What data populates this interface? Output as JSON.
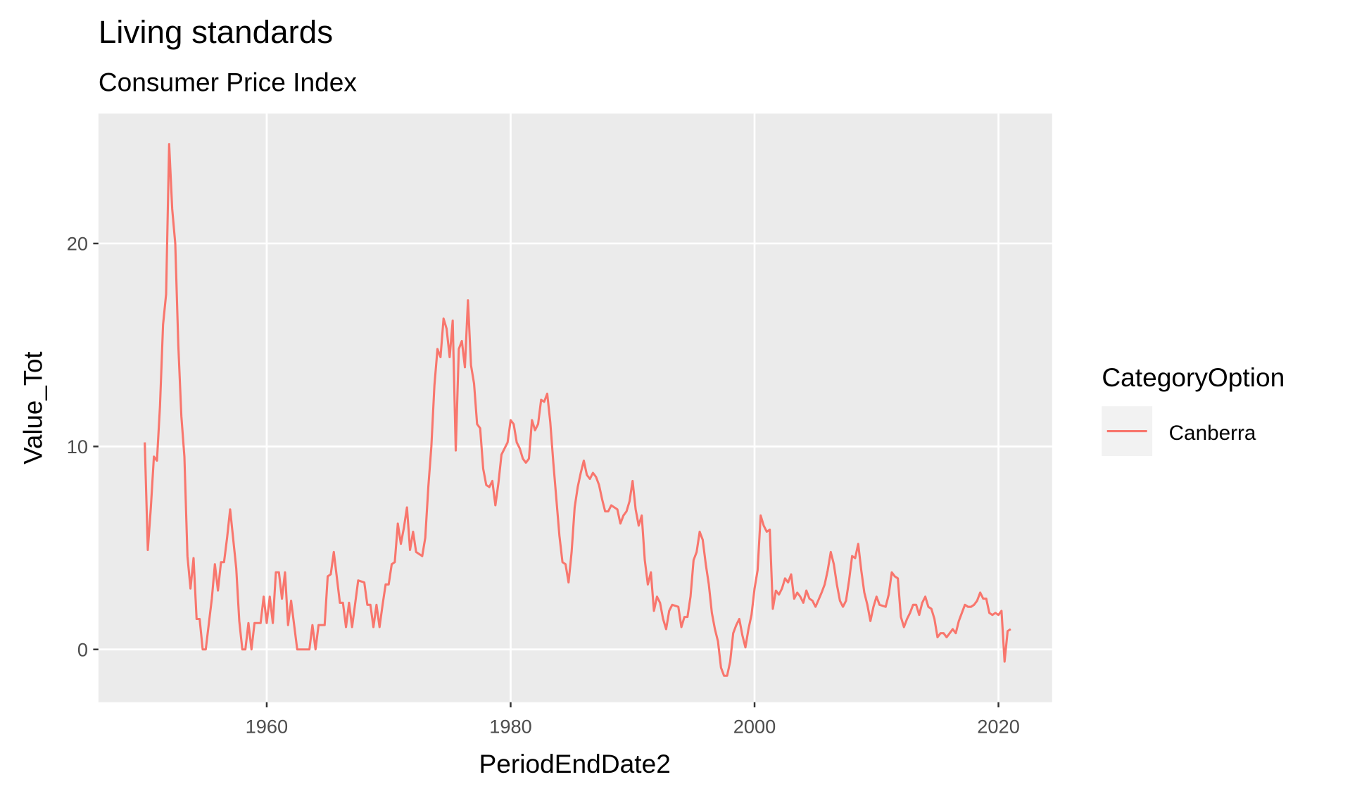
{
  "chart_data": {
    "type": "line",
    "title": "Living standards",
    "subtitle": "Consumer Price Index",
    "x_label": "PeriodEndDate2",
    "y_label": "Value_Tot",
    "legend_title": "CategoryOption",
    "grid": true,
    "legend_position": "right",
    "xlim": [
      1946.2,
      2024.4
    ],
    "ylim": [
      -2.6,
      26.4
    ],
    "xticks": [
      1960,
      1980,
      2000,
      2020
    ],
    "yticks": [
      0,
      10,
      20
    ],
    "x": [
      1950.0,
      1950.25,
      1950.5,
      1950.75,
      1951.0,
      1951.25,
      1951.5,
      1951.75,
      1952.0,
      1952.25,
      1952.5,
      1952.75,
      1953.0,
      1953.25,
      1953.5,
      1953.75,
      1954.0,
      1954.25,
      1954.5,
      1954.75,
      1955.0,
      1955.5,
      1955.75,
      1956.0,
      1956.25,
      1956.5,
      1956.75,
      1957.0,
      1957.5,
      1957.75,
      1958.0,
      1958.25,
      1958.5,
      1958.75,
      1959.0,
      1959.5,
      1959.75,
      1960.0,
      1960.25,
      1960.5,
      1960.75,
      1961.0,
      1961.25,
      1961.5,
      1961.75,
      1962.0,
      1962.5,
      1963.5,
      1963.75,
      1964.0,
      1964.25,
      1964.75,
      1965.0,
      1965.25,
      1965.5,
      1966.0,
      1966.25,
      1966.5,
      1966.75,
      1967.0,
      1967.5,
      1968.0,
      1968.25,
      1968.5,
      1968.75,
      1969.0,
      1969.25,
      1969.5,
      1969.75,
      1970.0,
      1970.25,
      1970.5,
      1970.75,
      1971.0,
      1971.25,
      1971.5,
      1971.75,
      1972.0,
      1972.25,
      1972.75,
      1973.0,
      1973.25,
      1973.5,
      1973.75,
      1974.0,
      1974.25,
      1974.5,
      1974.75,
      1975.0,
      1975.25,
      1975.5,
      1975.75,
      1976.0,
      1976.25,
      1976.5,
      1976.75,
      1977.0,
      1977.25,
      1977.5,
      1977.75,
      1978.0,
      1978.25,
      1978.5,
      1978.75,
      1979.0,
      1979.25,
      1979.75,
      1980.0,
      1980.25,
      1980.5,
      1980.75,
      1981.0,
      1981.25,
      1981.5,
      1981.75,
      1982.0,
      1982.25,
      1982.5,
      1982.75,
      1983.0,
      1983.25,
      1983.5,
      1983.75,
      1984.0,
      1984.25,
      1984.5,
      1984.75,
      1985.0,
      1985.25,
      1985.5,
      1985.75,
      1986.0,
      1986.25,
      1986.5,
      1986.75,
      1987.0,
      1987.25,
      1987.5,
      1987.75,
      1988.0,
      1988.25,
      1988.75,
      1989.0,
      1989.25,
      1989.5,
      1989.75,
      1990.0,
      1990.25,
      1990.5,
      1990.75,
      1991.0,
      1991.25,
      1991.5,
      1991.75,
      1992.0,
      1992.25,
      1992.5,
      1992.75,
      1993.0,
      1993.25,
      1993.75,
      1994.0,
      1994.25,
      1994.5,
      1994.75,
      1995.0,
      1995.25,
      1995.5,
      1995.75,
      1996.0,
      1996.25,
      1996.5,
      1996.75,
      1997.0,
      1997.25,
      1997.5,
      1997.75,
      1998.0,
      1998.25,
      1998.5,
      1998.75,
      1999.0,
      1999.25,
      1999.5,
      1999.75,
      2000.0,
      2000.25,
      2000.5,
      2000.75,
      2001.0,
      2001.25,
      2001.5,
      2001.75,
      2002.0,
      2002.25,
      2002.5,
      2002.75,
      2003.0,
      2003.25,
      2003.5,
      2003.75,
      2004.0,
      2004.25,
      2004.5,
      2004.75,
      2005.0,
      2005.5,
      2005.75,
      2006.0,
      2006.25,
      2006.5,
      2006.75,
      2007.0,
      2007.25,
      2007.5,
      2007.75,
      2008.0,
      2008.25,
      2008.5,
      2008.75,
      2009.0,
      2009.25,
      2009.5,
      2009.75,
      2010.0,
      2010.25,
      2010.75,
      2011.0,
      2011.25,
      2011.5,
      2011.75,
      2012.0,
      2012.25,
      2012.5,
      2012.75,
      2013.0,
      2013.25,
      2013.5,
      2013.75,
      2014.0,
      2014.25,
      2014.5,
      2014.75,
      2015.0,
      2015.25,
      2015.5,
      2015.75,
      2016.0,
      2016.25,
      2016.5,
      2016.75,
      2017.0,
      2017.25,
      2017.5,
      2017.75,
      2018.0,
      2018.25,
      2018.5,
      2018.75,
      2019.0,
      2019.25,
      2019.5,
      2019.75,
      2020.0,
      2020.25,
      2020.5,
      2020.75,
      2021.0
    ],
    "series": [
      {
        "name": "Canberra",
        "color": "#f8766d",
        "values": [
          10.2,
          4.9,
          7,
          9.5,
          9.3,
          12,
          16,
          17.5,
          24.9,
          21.7,
          20,
          15,
          11.5,
          9.5,
          4.6,
          3,
          4.5,
          1.5,
          1.5,
          0,
          0,
          2.5,
          4.2,
          2.9,
          4.3,
          4.3,
          5.5,
          6.9,
          4,
          1.4,
          0,
          0,
          1.3,
          0,
          1.3,
          1.3,
          2.6,
          1.3,
          2.6,
          1.3,
          3.8,
          3.8,
          2.5,
          3.8,
          1.2,
          2.4,
          0,
          0,
          1.2,
          0,
          1.2,
          1.2,
          3.6,
          3.7,
          4.8,
          2.3,
          2.3,
          1.1,
          2.3,
          1.1,
          3.4,
          3.3,
          2.2,
          2.2,
          1.1,
          2.2,
          1.1,
          2.2,
          3.2,
          3.2,
          4.2,
          4.3,
          6.2,
          5.2,
          6,
          7,
          4.9,
          5.8,
          4.8,
          4.6,
          5.5,
          8,
          10,
          13,
          14.8,
          14.4,
          16.3,
          15.8,
          14.4,
          16.2,
          9.8,
          14.8,
          15.2,
          13.9,
          17.2,
          14,
          13.1,
          11.1,
          10.9,
          8.9,
          8.1,
          8,
          8.3,
          7.1,
          8.2,
          9.6,
          10.2,
          11.3,
          11.1,
          10.2,
          9.9,
          9.4,
          9.2,
          9.4,
          11.3,
          10.8,
          11.1,
          12.3,
          12.2,
          12.6,
          11.2,
          9.2,
          7.4,
          5.6,
          4.3,
          4.2,
          3.3,
          4.8,
          7,
          8,
          8.7,
          9.3,
          8.6,
          8.4,
          8.7,
          8.5,
          8.1,
          7.4,
          6.8,
          6.8,
          7.1,
          6.9,
          6.2,
          6.6,
          6.8,
          7.3,
          8.3,
          6.9,
          6.1,
          6.6,
          4.4,
          3.2,
          3.8,
          1.9,
          2.6,
          2.3,
          1.5,
          1.0,
          1.9,
          2.2,
          2.1,
          1.1,
          1.6,
          1.6,
          2.6,
          4.4,
          4.8,
          5.8,
          5.4,
          4.2,
          3.2,
          1.8,
          1.0,
          0.4,
          -0.9,
          -1.3,
          -1.3,
          -0.6,
          0.8,
          1.2,
          1.5,
          0.7,
          0.1,
          1.0,
          1.7,
          3.0,
          3.9,
          6.6,
          6.1,
          5.8,
          5.9,
          2.0,
          2.9,
          2.7,
          3.0,
          3.5,
          3.3,
          3.7,
          2.5,
          2.8,
          2.6,
          2.3,
          2.9,
          2.5,
          2.4,
          2.1,
          2.8,
          3.2,
          3.9,
          4.8,
          4.2,
          3.2,
          2.4,
          2.1,
          2.4,
          3.4,
          4.6,
          4.5,
          5.2,
          3.9,
          2.8,
          2.2,
          1.4,
          2.1,
          2.6,
          2.2,
          2.1,
          2.7,
          3.8,
          3.6,
          3.5,
          1.6,
          1.1,
          1.5,
          1.8,
          2.2,
          2.2,
          1.7,
          2.3,
          2.6,
          2.1,
          2.0,
          1.5,
          0.6,
          0.8,
          0.8,
          0.6,
          0.8,
          1.0,
          0.8,
          1.4,
          1.8,
          2.2,
          2.1,
          2.1,
          2.2,
          2.4,
          2.8,
          2.5,
          2.5,
          1.8,
          1.7,
          1.8,
          1.7,
          1.9,
          -0.6,
          0.9,
          1.0
        ]
      }
    ]
  }
}
